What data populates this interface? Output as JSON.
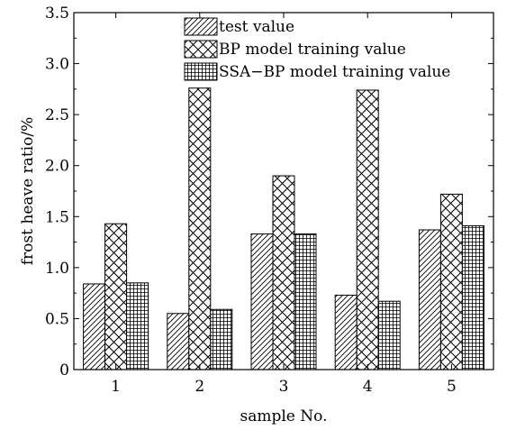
{
  "chart_data": {
    "type": "bar",
    "xlabel": "sample No.",
    "ylabel": "frost heave ratio/%",
    "categories": [
      "1",
      "2",
      "3",
      "4",
      "5"
    ],
    "ylim": [
      0,
      3.5
    ],
    "yticks": [
      "0",
      "0.5",
      "1.0",
      "1.5",
      "2.0",
      "2.5",
      "3.0",
      "3.5"
    ],
    "grid": false,
    "legend_position": "top-center",
    "series": [
      {
        "name": "test value",
        "pattern": "diagonal-hatch",
        "values": [
          0.84,
          0.55,
          1.33,
          0.73,
          1.37
        ]
      },
      {
        "name": "BP model training value",
        "pattern": "crosshatch",
        "values": [
          1.43,
          2.76,
          1.9,
          2.74,
          1.72
        ]
      },
      {
        "name": "SSA−BP model training value",
        "pattern": "grid",
        "values": [
          0.85,
          0.59,
          1.33,
          0.67,
          1.41
        ]
      }
    ]
  }
}
